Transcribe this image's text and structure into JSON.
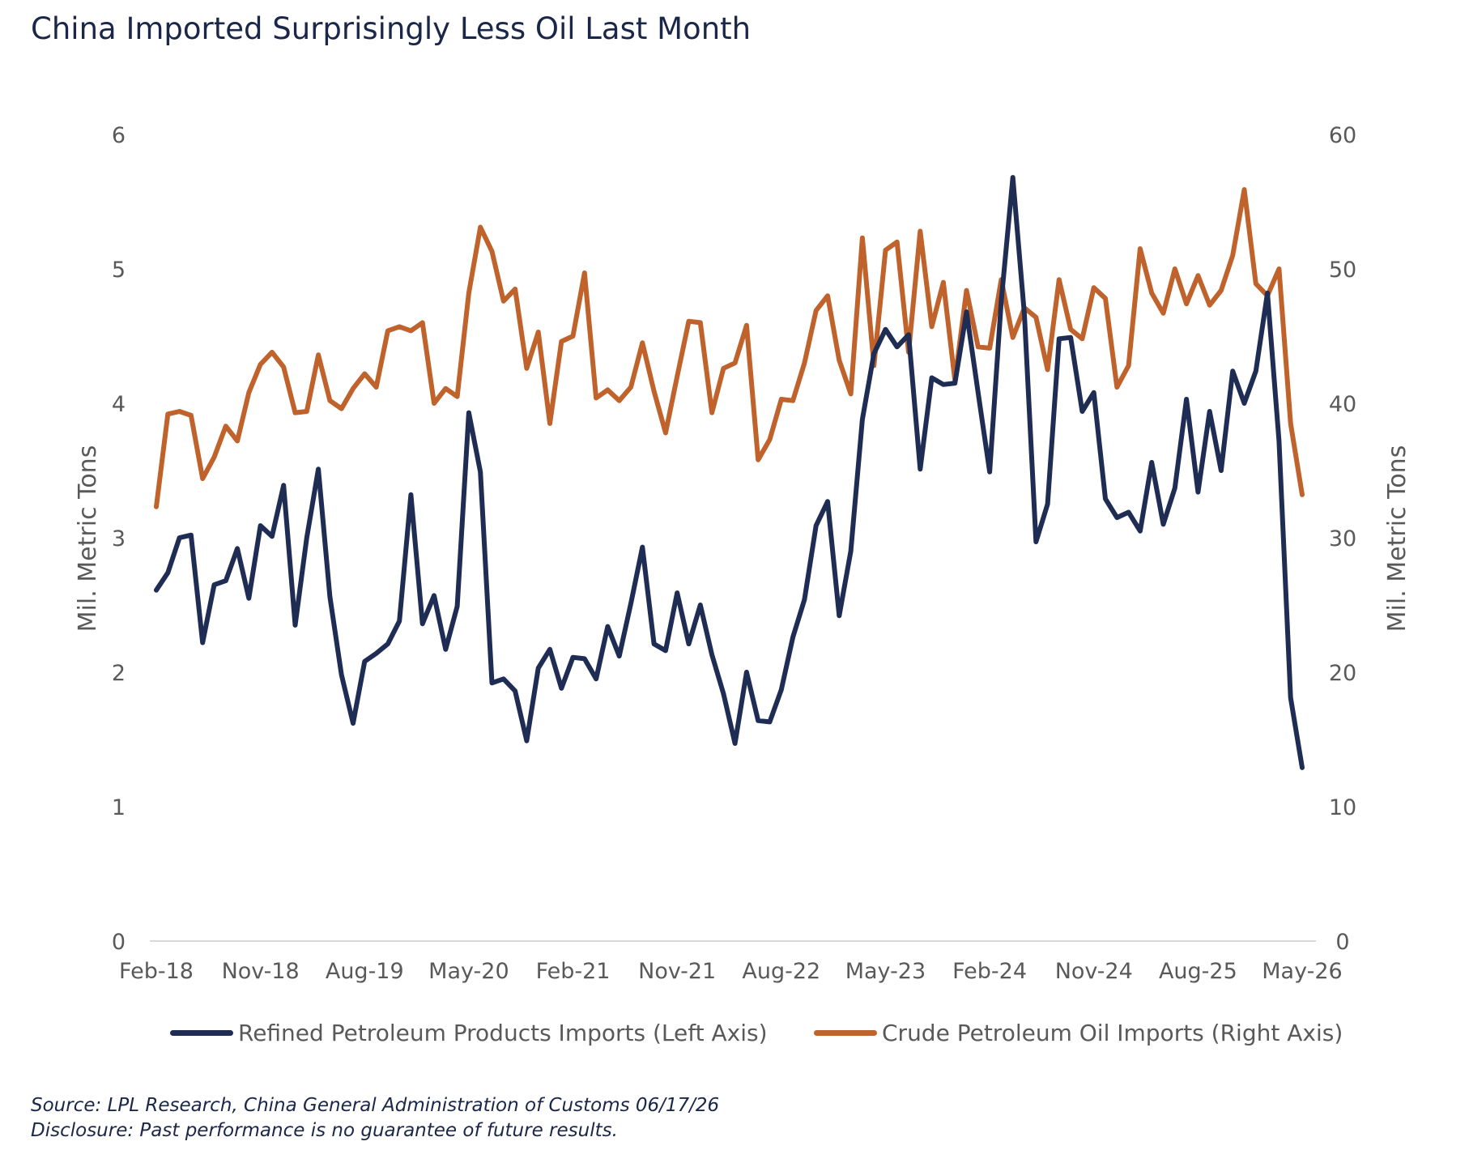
{
  "title": "China Imported Surprisingly Less Oil Last Month",
  "source": "Source: LPL Research, China General Administration of Customs 06/17/26",
  "disclosure": "Disclosure: Past performance is no guarantee of future results.",
  "colors": {
    "refined": "#1f2d54",
    "crude": "#c0622b",
    "axis": "#595959",
    "title": "#1b2749"
  },
  "chart_data": {
    "type": "line",
    "left_axis": {
      "label": "Mil. Metric Tons",
      "range": [
        0,
        6
      ],
      "ticks": [
        "0",
        "1",
        "2",
        "3",
        "4",
        "5",
        "6"
      ]
    },
    "right_axis": {
      "label": "Mil. Metric Tons",
      "range": [
        0,
        60
      ],
      "ticks": [
        "0",
        "10",
        "20",
        "30",
        "40",
        "50",
        "60"
      ]
    },
    "x_tick_labels": [
      "Feb-18",
      "Nov-18",
      "Aug-19",
      "May-20",
      "Feb-21",
      "Nov-21",
      "Aug-22",
      "May-23",
      "Feb-24",
      "Nov-24",
      "Aug-25",
      "May-26"
    ],
    "grid": false,
    "legend_position": "bottom",
    "series": [
      {
        "name": "Refined Petroleum Products Imports (Left Axis)",
        "axis": "left",
        "values": [
          2.61,
          2.74,
          3.0,
          3.02,
          2.22,
          2.65,
          2.68,
          2.92,
          2.55,
          3.09,
          3.01,
          3.39,
          2.35,
          3.0,
          3.51,
          2.56,
          1.98,
          1.62,
          2.08,
          2.14,
          2.21,
          2.38,
          3.32,
          2.36,
          2.57,
          2.17,
          2.49,
          3.93,
          3.49,
          1.92,
          1.95,
          1.86,
          1.49,
          2.03,
          2.17,
          1.88,
          2.11,
          2.1,
          1.95,
          2.34,
          2.12,
          2.51,
          2.93,
          2.21,
          2.16,
          2.59,
          2.21,
          2.5,
          2.13,
          1.84,
          1.47,
          2.0,
          1.64,
          1.63,
          1.87,
          2.26,
          2.54,
          3.09,
          3.27,
          2.42,
          2.9,
          3.88,
          4.37,
          4.55,
          4.42,
          4.51,
          3.51,
          4.19,
          4.14,
          4.15,
          4.68,
          4.08,
          3.49,
          4.76,
          5.68,
          4.66,
          2.97,
          3.25,
          4.48,
          4.49,
          3.94,
          4.08,
          3.29,
          3.15,
          3.19,
          3.05,
          3.56,
          3.1,
          3.37,
          4.03,
          3.34,
          3.94,
          3.5,
          4.24,
          4.0,
          4.24,
          4.82,
          3.72,
          1.81,
          1.29
        ]
      },
      {
        "name": "Crude Petroleum Oil Imports (Right Axis)",
        "axis": "right",
        "values": [
          32.3,
          39.2,
          39.4,
          39.1,
          34.4,
          36.0,
          38.3,
          37.2,
          40.8,
          42.9,
          43.8,
          42.7,
          39.3,
          39.4,
          43.6,
          40.2,
          39.6,
          41.1,
          42.2,
          41.2,
          45.4,
          45.7,
          45.4,
          46.0,
          40.0,
          41.1,
          40.5,
          48.2,
          53.1,
          51.3,
          47.6,
          48.5,
          42.6,
          45.3,
          38.5,
          44.6,
          45.0,
          49.7,
          40.4,
          41.0,
          40.2,
          41.2,
          44.5,
          40.9,
          37.8,
          42.0,
          46.1,
          46.0,
          39.3,
          42.6,
          43.0,
          45.8,
          35.8,
          37.3,
          40.3,
          40.2,
          43.0,
          46.9,
          48.0,
          43.2,
          40.7,
          52.3,
          42.8,
          51.4,
          52.0,
          43.8,
          52.8,
          45.7,
          49.0,
          41.7,
          48.4,
          44.2,
          44.1,
          49.2,
          44.9,
          47.1,
          46.4,
          42.5,
          49.2,
          45.5,
          44.8,
          48.6,
          47.8,
          41.2,
          42.8,
          51.5,
          48.2,
          46.7,
          50.0,
          47.4,
          49.5,
          47.3,
          48.4,
          51.0,
          55.9,
          48.9,
          48.0,
          50.0,
          38.5,
          33.2
        ]
      }
    ]
  }
}
